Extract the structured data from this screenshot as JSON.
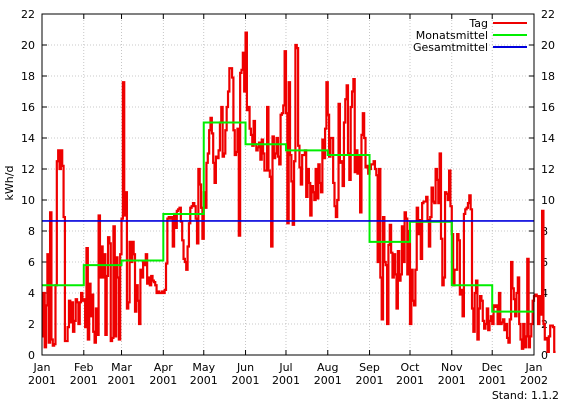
{
  "chart_data": {
    "type": "line",
    "ylabel": "kWh/d",
    "ylim": [
      0,
      22
    ],
    "yticks": [
      0,
      2,
      4,
      6,
      8,
      10,
      12,
      14,
      16,
      18,
      20,
      22
    ],
    "xlim": [
      0,
      365
    ],
    "xticks": [
      {
        "day": 0,
        "month": "Jan",
        "year": "2001"
      },
      {
        "day": 31,
        "month": "Feb",
        "year": "2001"
      },
      {
        "day": 59,
        "month": "Mar",
        "year": "2001"
      },
      {
        "day": 90,
        "month": "Apr",
        "year": "2001"
      },
      {
        "day": 120,
        "month": "May",
        "year": "2001"
      },
      {
        "day": 151,
        "month": "Jun",
        "year": "2001"
      },
      {
        "day": 181,
        "month": "Jul",
        "year": "2001"
      },
      {
        "day": 212,
        "month": "Aug",
        "year": "2001"
      },
      {
        "day": 243,
        "month": "Sep",
        "year": "2001"
      },
      {
        "day": 273,
        "month": "Oct",
        "year": "2001"
      },
      {
        "day": 304,
        "month": "Nov",
        "year": "2001"
      },
      {
        "day": 334,
        "month": "Dec",
        "year": "2001"
      },
      {
        "day": 365,
        "month": "Jan",
        "year": "2002"
      }
    ],
    "grid": true,
    "legend_position": "top-right",
    "footer": "Stand: 1.1.2",
    "series": [
      {
        "name": "Tag",
        "color": "#ee0000",
        "step": true,
        "values": [
          1.2,
          4.0,
          0.5,
          3.2,
          6.5,
          0.8,
          9.2,
          1.0,
          0.6,
          0.7,
          4.5,
          12.5,
          13.2,
          12.0,
          13.2,
          12.2,
          8.9,
          0.9,
          0.9,
          1.8,
          3.5,
          2.1,
          3.4,
          1.5,
          2.2,
          3.6,
          3.4,
          2.0,
          3.4,
          4.0,
          3.5,
          3.6,
          1.8,
          6.9,
          1.0,
          4.6,
          2.5,
          3.9,
          1.5,
          0.8,
          3.0,
          1.3,
          9.0,
          5.0,
          7.0,
          5.0,
          6.5,
          1.3,
          5.1,
          7.6,
          7.2,
          0.9,
          1.1,
          8.3,
          1.2,
          6.3,
          5.0,
          1.0,
          6.5,
          8.8,
          17.6,
          9.0,
          10.5,
          3.0,
          3.4,
          7.3,
          6.0,
          7.3,
          6.5,
          2.8,
          4.5,
          3.5,
          2.0,
          5.5,
          5.0,
          6.0,
          5.8,
          6.5,
          4.6,
          5.0,
          4.5,
          5.1,
          4.8,
          4.7,
          4.5,
          4.0,
          4.1,
          4.0,
          4.0,
          4.1,
          4.0,
          4.2,
          5.9,
          8.8,
          8.9,
          8.8,
          8.9,
          7.0,
          9.1,
          8.2,
          9.3,
          9.4,
          9.5,
          8.6,
          7.4,
          6.2,
          6.0,
          5.5,
          7.0,
          8.5,
          9.5,
          9.6,
          9.8,
          9.6,
          8.8,
          7.2,
          12.0,
          11.0,
          9.5,
          7.5,
          10.5,
          9.5,
          12.4,
          13.0,
          14.5,
          15.3,
          14.3,
          12.4,
          11.1,
          12.8,
          12.7,
          13.2,
          15.0,
          16.0,
          12.8,
          13.0,
          14.5,
          16.0,
          17.0,
          18.5,
          18.5,
          17.9,
          14.5,
          12.9,
          13.1,
          14.6,
          7.7,
          18.2,
          18.4,
          19.5,
          17.0,
          20.8,
          15.8,
          16.0,
          14.6,
          14.2,
          13.5,
          15.1,
          13.6,
          13.2,
          13.4,
          13.7,
          12.6,
          13.9,
          13.0,
          11.9,
          11.9,
          16.0,
          11.9,
          11.5,
          7.0,
          14.1,
          12.7,
          13.0,
          14.0,
          12.8,
          12.3,
          15.5,
          15.6,
          16.1,
          19.6,
          15.6,
          8.5,
          17.6,
          12.9,
          11.2,
          8.4,
          12.5,
          20.0,
          19.8,
          13.5,
          12.1,
          11.0,
          12.9,
          12.9,
          13.2,
          10.2,
          12.0,
          11.1,
          9.0,
          10.9,
          10.5,
          10.0,
          12.0,
          10.1,
          12.3,
          11.1,
          10.5,
          13.9,
          12.7,
          14.6,
          17.6,
          15.5,
          12.8,
          14.0,
          14.0,
          11.1,
          9.6,
          8.9,
          10.0,
          16.2,
          12.4,
          12.5,
          10.9,
          15.0,
          16.5,
          17.4,
          13.0,
          11.3,
          16.0,
          17.0,
          17.8,
          11.8,
          13.2,
          11.7,
          12.8,
          9.2,
          14.2,
          15.6,
          14.0,
          12.1,
          12.2,
          11.7,
          12.0,
          12.3,
          12.3,
          12.5,
          12.0,
          11.6,
          6.0,
          12.0,
          5.0,
          2.3,
          8.9,
          6.0,
          5.8,
          2.0,
          7.1,
          8.4,
          6.6,
          5.0,
          6.5,
          5.2,
          3.0,
          6.7,
          4.8,
          5.2,
          8.3,
          6.0,
          9.2,
          8.8,
          5.2,
          8.0,
          2.0,
          5.5,
          3.5,
          3.2,
          5.5,
          9.5,
          7.8,
          8.7,
          6.2,
          9.8,
          9.9,
          9.9,
          10.2,
          8.7,
          7.0,
          8.9,
          10.8,
          9.9,
          9.8,
          12.0,
          11.3,
          9.8,
          13.0,
          7.5,
          4.5,
          5.0,
          10.5,
          10.4,
          10.0,
          11.9,
          9.6,
          7.8,
          4.5,
          5.5,
          5.5,
          7.8,
          7.4,
          3.9,
          4.2,
          2.5,
          9.1,
          9.4,
          9.5,
          9.8,
          10.3,
          9.4,
          3.0,
          1.5,
          4.0,
          4.8,
          1.0,
          3.0,
          3.8,
          3.5,
          2.2,
          1.7,
          2.0,
          3.0,
          1.6,
          2.2,
          2.5,
          2.0,
          3.2,
          3.1,
          3.2,
          2.0,
          4.0,
          2.0,
          2.1,
          2.3,
          1.6,
          2.0,
          1.1,
          0.8,
          2.3,
          6.0,
          4.3,
          3.6,
          2.5,
          4.0,
          5.0,
          2.0,
          1.0,
          0.4,
          2.0,
          0.5,
          1.2,
          6.2,
          0.5,
          1.2,
          2.0,
          3.5,
          3.8,
          3.9,
          3.8,
          2.0,
          3.8,
          2.6,
          9.3,
          2.0,
          1.0,
          1.1,
          0.2,
          1.2,
          1.9,
          1.9,
          1.8,
          0.2
        ]
      },
      {
        "name": "Monatsmittel",
        "color": "#00ee00",
        "step": true,
        "values": [
          4.5,
          5.8,
          6.1,
          9.1,
          15.0,
          13.6,
          13.2,
          12.9,
          7.3,
          8.6,
          4.5,
          2.8
        ]
      },
      {
        "name": "Gesamtmittel",
        "color": "#0000dd",
        "step": false,
        "values": [
          8.65
        ]
      }
    ]
  }
}
